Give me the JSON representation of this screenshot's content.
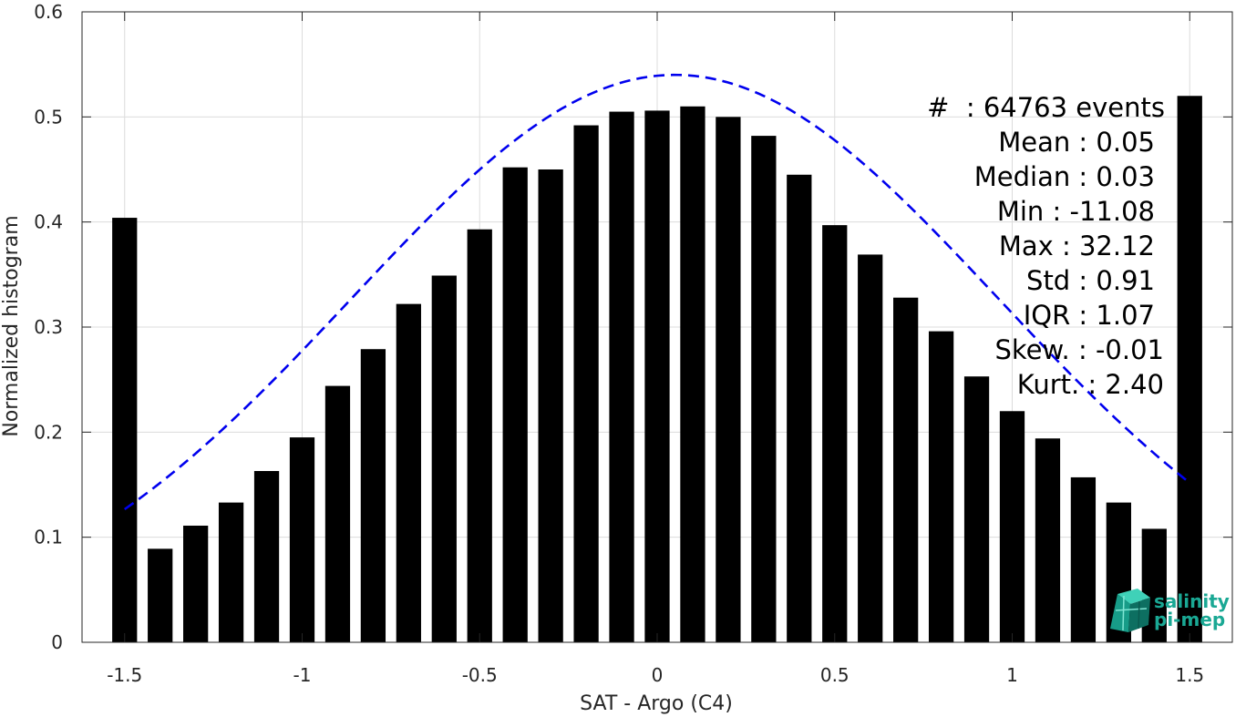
{
  "chart_data": {
    "type": "bar",
    "xlabel": "SAT - Argo (C4)",
    "ylabel": "Normalized histogram",
    "xlim": [
      -1.62,
      1.62
    ],
    "ylim": [
      0,
      0.6
    ],
    "xticks": [
      -1.5,
      -1,
      -0.5,
      0,
      0.5,
      1,
      1.5
    ],
    "xtick_labels": [
      "-1.5",
      "-1",
      "-0.5",
      "0",
      "0.5",
      "1",
      "1.5"
    ],
    "yticks": [
      0,
      0.1,
      0.2,
      0.3,
      0.4,
      0.5,
      0.6
    ],
    "ytick_labels": [
      "0",
      "0.1",
      "0.2",
      "0.3",
      "0.4",
      "0.5",
      "0.6"
    ],
    "grid": true,
    "bar_width": 0.07,
    "colors": {
      "bars": "#000000",
      "fit": "#0000ee",
      "grid": "#dcdcdc",
      "axis": "#262626"
    },
    "x": [
      -1.5,
      -1.4,
      -1.3,
      -1.2,
      -1.1,
      -1.0,
      -0.9,
      -0.8,
      -0.7,
      -0.6,
      -0.5,
      -0.4,
      -0.3,
      -0.2,
      -0.1,
      0.0,
      0.1,
      0.2,
      0.3,
      0.4,
      0.5,
      0.6,
      0.7,
      0.8,
      0.9,
      1.0,
      1.1,
      1.2,
      1.3,
      1.4,
      1.5
    ],
    "values": [
      0.404,
      0.089,
      0.111,
      0.133,
      0.163,
      0.195,
      0.244,
      0.279,
      0.322,
      0.349,
      0.393,
      0.452,
      0.45,
      0.492,
      0.505,
      0.506,
      0.51,
      0.5,
      0.482,
      0.445,
      0.397,
      0.369,
      0.328,
      0.296,
      0.253,
      0.22,
      0.194,
      0.157,
      0.133,
      0.108,
      0.52
    ],
    "fit_curve": {
      "type": "normal",
      "mean": 0.05,
      "std": 0.91,
      "peak": 0.54,
      "x_range": [
        -1.5,
        1.5
      ],
      "style": "dashed"
    }
  },
  "stats": [
    "#  : 64763 events",
    "Mean : 0.05",
    "Median : 0.03",
    "Min : -11.08",
    "Max : 32.12",
    "Std : 0.91",
    "IQR : 1.07",
    "Skew. : -0.01",
    "Kurt. : 2.40"
  ],
  "logo": {
    "line1": "salinity",
    "line2": "pi-mep",
    "color": "#1aa894"
  }
}
